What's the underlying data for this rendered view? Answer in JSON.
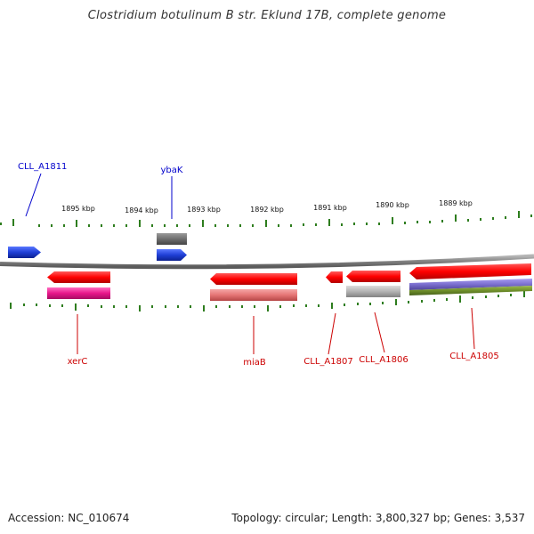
{
  "title": "Clostridium botulinum B str. Eklund 17B, complete genome",
  "footer": {
    "accession": "Accession: NC_010674",
    "summary": "Topology: circular; Length: 3,800,327 bp; Genes: 3,537"
  },
  "colors": {
    "backbone": "#8a8a8a",
    "ticks": "#2e7d1e",
    "forward_label": "#0000cc",
    "reverse_label": "#cc0000"
  },
  "scale_labels": [
    "1895 kbp",
    "1894 kbp",
    "1893 kbp",
    "1892 kbp",
    "1891 kbp",
    "1890 kbp",
    "1889 kbp"
  ],
  "genes": [
    {
      "label": "CLL_A1811",
      "strand": "forward",
      "color": "#1f3fd6"
    },
    {
      "label": "ybaK",
      "strand": "forward",
      "color": "#1f3fd6"
    },
    {
      "label": "xerC",
      "strand": "reverse",
      "color": "#e81010"
    },
    {
      "label": "miaB",
      "strand": "reverse",
      "color": "#e81010"
    },
    {
      "label": "CLL_A1807",
      "strand": "reverse",
      "color": "#e81010"
    },
    {
      "label": "CLL_A1806",
      "strand": "reverse",
      "color": "#e81010"
    },
    {
      "label": "CLL_A1805",
      "strand": "reverse",
      "color": "#e81010"
    }
  ],
  "category_tracks": [
    {
      "color": "#6e6e6e"
    },
    {
      "color": "#e8168a"
    },
    {
      "color": "#e57575"
    },
    {
      "color": "#b2b2b2"
    },
    {
      "color": "#7b6fcf"
    },
    {
      "color": "#6f8f2a"
    }
  ]
}
